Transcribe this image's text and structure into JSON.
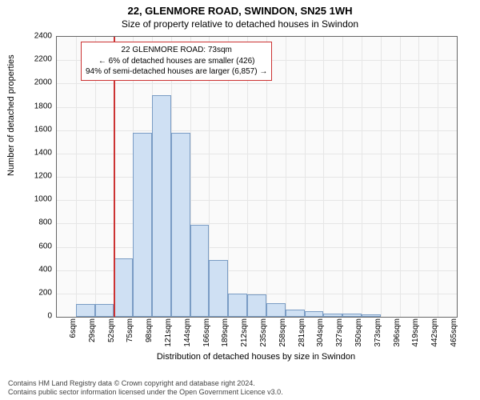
{
  "header": {
    "address": "22, GLENMORE ROAD, SWINDON, SN25 1WH",
    "subtitle": "Size of property relative to detached houses in Swindon"
  },
  "chart": {
    "type": "histogram",
    "x_label": "Distribution of detached houses by size in Swindon",
    "y_label": "Number of detached properties",
    "ylim": [
      0,
      2400
    ],
    "ytick_step": 200,
    "x_categories": [
      "6sqm",
      "29sqm",
      "52sqm",
      "75sqm",
      "98sqm",
      "121sqm",
      "144sqm",
      "166sqm",
      "189sqm",
      "212sqm",
      "235sqm",
      "258sqm",
      "281sqm",
      "304sqm",
      "327sqm",
      "350sqm",
      "373sqm",
      "396sqm",
      "419sqm",
      "442sqm",
      "465sqm"
    ],
    "values": [
      0,
      110,
      110,
      500,
      1580,
      1900,
      1580,
      790,
      490,
      200,
      190,
      120,
      60,
      50,
      30,
      30,
      20,
      0,
      0,
      0,
      0
    ],
    "bar_color": "#cfe0f3",
    "bar_border_color": "#7a9cc4",
    "background_color": "#fafafa",
    "grid_color": "#e6e6e6",
    "reference_line": {
      "category_index": 3,
      "color": "#cc3333"
    },
    "annotation": {
      "line1": "22 GLENMORE ROAD: 73sqm",
      "line2": "← 6% of detached houses are smaller (426)",
      "line3": "94% of semi-detached houses are larger (6,857) →",
      "border_color": "#cc3333"
    },
    "title_fontsize": 13,
    "label_fontsize": 11,
    "tick_fontsize": 10
  },
  "footer": {
    "line1": "Contains HM Land Registry data © Crown copyright and database right 2024.",
    "line2": "Contains public sector information licensed under the Open Government Licence v3.0."
  }
}
